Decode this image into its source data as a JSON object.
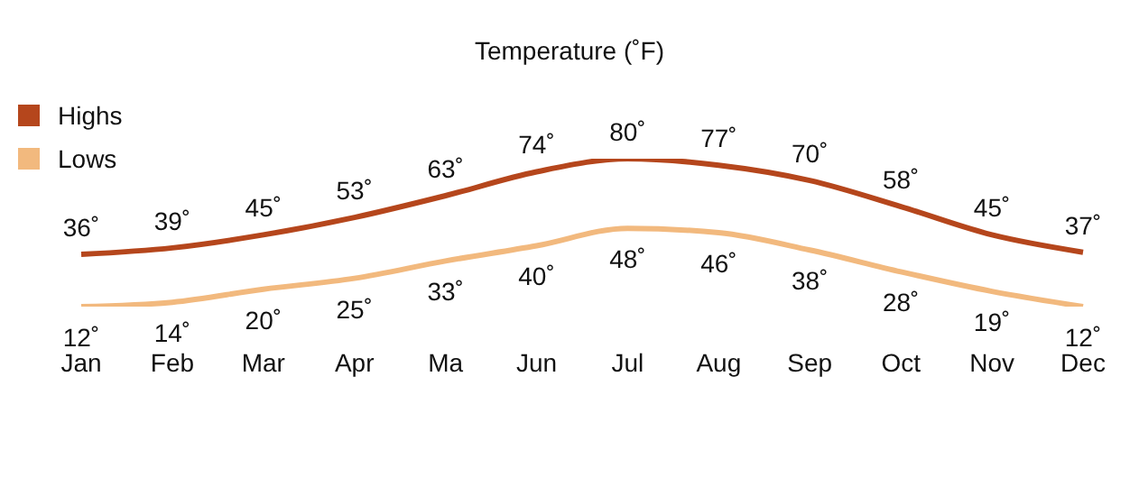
{
  "chart_data": {
    "type": "line",
    "title": "Temperature (˚F)",
    "categories": [
      "Jan",
      "Feb",
      "Mar",
      "Apr",
      "Ma",
      "Jun",
      "Jul",
      "Aug",
      "Sep",
      "Oct",
      "Nov",
      "Dec"
    ],
    "series": [
      {
        "name": "Highs",
        "color": "#b5461c",
        "values": [
          36,
          39,
          45,
          53,
          63,
          74,
          80,
          77,
          70,
          58,
          45,
          37
        ],
        "value_labels": [
          "36˚",
          "39˚",
          "45˚",
          "53˚",
          "63˚",
          "74˚",
          "80˚",
          "77˚",
          "70˚",
          "58˚",
          "45˚",
          "37˚"
        ]
      },
      {
        "name": "Lows",
        "color": "#f2b97e",
        "values": [
          12,
          14,
          20,
          25,
          33,
          40,
          48,
          46,
          38,
          28,
          19,
          12
        ],
        "value_labels": [
          "12˚",
          "14˚",
          "20˚",
          "25˚",
          "33˚",
          "40˚",
          "48˚",
          "46˚",
          "38˚",
          "28˚",
          "19˚",
          "12˚"
        ]
      }
    ],
    "legend": "top left",
    "marker": "none",
    "line_style": "solid",
    "grid": false
  }
}
